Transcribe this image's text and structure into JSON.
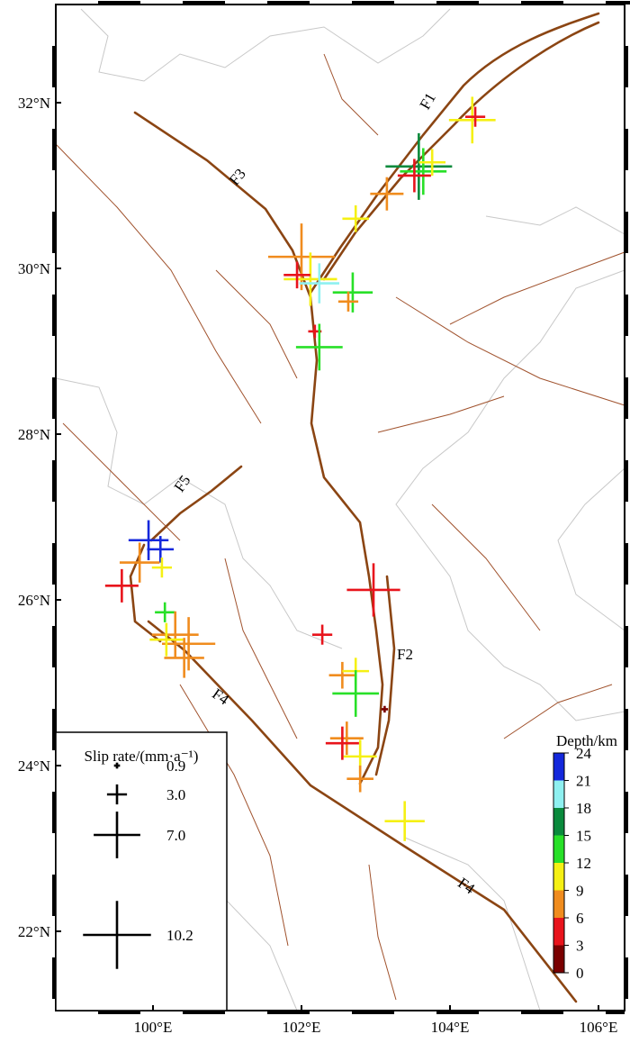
{
  "map": {
    "lon_ticks": [
      {
        "value": 100,
        "label": "100°E"
      },
      {
        "value": 102,
        "label": "102°E"
      },
      {
        "value": 104,
        "label": "104°E"
      },
      {
        "value": 106,
        "label": "106°E"
      }
    ],
    "lat_ticks": [
      {
        "value": 22,
        "label": "22°N"
      },
      {
        "value": 24,
        "label": "24°N"
      },
      {
        "value": 26,
        "label": "26°N"
      },
      {
        "value": 28,
        "label": "28°N"
      },
      {
        "value": 30,
        "label": "30°N"
      },
      {
        "value": 32,
        "label": "32°N"
      }
    ],
    "fault_labels": [
      "F1",
      "F3",
      "F5",
      "F2",
      "F4",
      "F4"
    ],
    "stations": [
      {
        "lon": 104.3,
        "lat": 31.79,
        "rate": 7,
        "depth": 10
      },
      {
        "lon": 104.34,
        "lat": 31.83,
        "rate": 3,
        "depth": 5
      },
      {
        "lon": 103.58,
        "lat": 31.23,
        "rate": 10,
        "depth": 16
      },
      {
        "lon": 103.64,
        "lat": 31.17,
        "rate": 7,
        "depth": 13
      },
      {
        "lon": 103.52,
        "lat": 31.12,
        "rate": 5,
        "depth": 4
      },
      {
        "lon": 103.76,
        "lat": 31.28,
        "rate": 4,
        "depth": 10
      },
      {
        "lon": 103.15,
        "lat": 30.9,
        "rate": 5,
        "depth": 8
      },
      {
        "lon": 102.73,
        "lat": 30.6,
        "rate": 4,
        "depth": 10
      },
      {
        "lon": 102.0,
        "lat": 30.14,
        "rate": 10,
        "depth": 8
      },
      {
        "lon": 102.12,
        "lat": 29.87,
        "rate": 8,
        "depth": 10
      },
      {
        "lon": 102.24,
        "lat": 29.82,
        "rate": 6,
        "depth": 19
      },
      {
        "lon": 101.94,
        "lat": 29.92,
        "rate": 4,
        "depth": 5
      },
      {
        "lon": 102.69,
        "lat": 29.71,
        "rate": 6,
        "depth": 13
      },
      {
        "lon": 102.63,
        "lat": 29.6,
        "rate": 3,
        "depth": 8
      },
      {
        "lon": 102.18,
        "lat": 29.24,
        "rate": 2,
        "depth": 4
      },
      {
        "lon": 102.24,
        "lat": 29.05,
        "rate": 7,
        "depth": 13
      },
      {
        "lon": 99.94,
        "lat": 26.72,
        "rate": 6,
        "depth": 22
      },
      {
        "lon": 100.1,
        "lat": 26.61,
        "rate": 4,
        "depth": 23
      },
      {
        "lon": 99.82,
        "lat": 26.45,
        "rate": 6,
        "depth": 8
      },
      {
        "lon": 99.58,
        "lat": 26.17,
        "rate": 5,
        "depth": 5
      },
      {
        "lon": 100.12,
        "lat": 26.39,
        "rate": 3,
        "depth": 11
      },
      {
        "lon": 100.16,
        "lat": 25.85,
        "rate": 3,
        "depth": 14
      },
      {
        "lon": 100.3,
        "lat": 25.58,
        "rate": 7,
        "depth": 8
      },
      {
        "lon": 100.48,
        "lat": 25.47,
        "rate": 8,
        "depth": 8
      },
      {
        "lon": 100.18,
        "lat": 25.52,
        "rate": 5,
        "depth": 10
      },
      {
        "lon": 100.42,
        "lat": 25.3,
        "rate": 6,
        "depth": 7
      },
      {
        "lon": 102.97,
        "lat": 26.12,
        "rate": 8,
        "depth": 5
      },
      {
        "lon": 102.28,
        "lat": 25.58,
        "rate": 3,
        "depth": 5
      },
      {
        "lon": 102.55,
        "lat": 25.09,
        "rate": 4,
        "depth": 8
      },
      {
        "lon": 102.73,
        "lat": 25.14,
        "rate": 4,
        "depth": 10
      },
      {
        "lon": 102.73,
        "lat": 24.87,
        "rate": 7,
        "depth": 13
      },
      {
        "lon": 103.12,
        "lat": 24.68,
        "rate": 1,
        "depth": 1
      },
      {
        "lon": 102.61,
        "lat": 24.33,
        "rate": 5,
        "depth": 8
      },
      {
        "lon": 102.79,
        "lat": 24.11,
        "rate": 5,
        "depth": 10
      },
      {
        "lon": 102.55,
        "lat": 24.27,
        "rate": 5,
        "depth": 4
      },
      {
        "lon": 102.79,
        "lat": 23.84,
        "rate": 4,
        "depth": 7
      },
      {
        "lon": 103.39,
        "lat": 23.33,
        "rate": 6,
        "depth": 11
      }
    ],
    "legend": {
      "title": "Slip rate/(mm·a⁻¹)",
      "rates": [
        0.9,
        {
          "value": 3,
          "label": "3.0"
        },
        {
          "value": 7,
          "label": "7.0"
        },
        10.2
      ]
    },
    "colorbar": {
      "label": "Depth/km",
      "ticks": [
        0,
        3,
        6,
        9,
        12,
        15,
        18,
        21,
        24
      ],
      "colors": [
        "#7a0000",
        "#e8141c",
        "#f08c1e",
        "#f5f014",
        "#28e028",
        "#0a8a3c",
        "#8ef0f0",
        "#1428dc"
      ]
    }
  }
}
